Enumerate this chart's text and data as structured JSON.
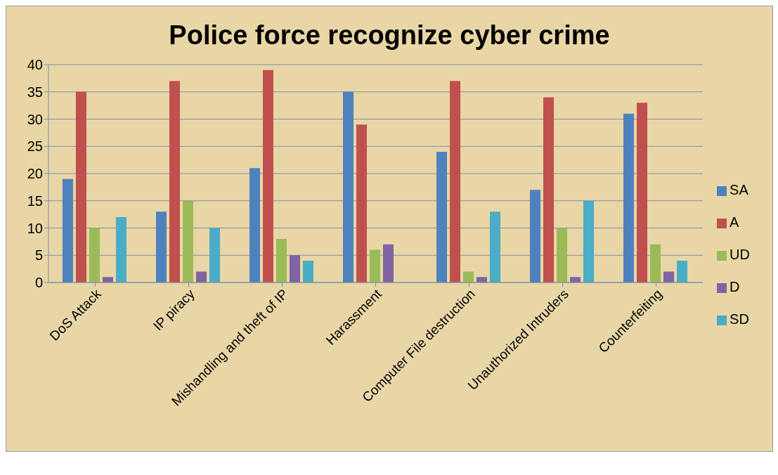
{
  "chart_data": {
    "type": "bar",
    "title": "Police force recognize cyber crime",
    "categories": [
      "DoS Attack",
      "IP  piracy",
      "Mishandling and theft of IP",
      "Harassment",
      "Computer File destruction",
      "Unauthorized Intruders",
      "Counterfeiting"
    ],
    "series": [
      {
        "name": "SA",
        "color": "#4f81bd",
        "values": [
          19,
          13,
          21,
          35,
          24,
          17,
          31
        ]
      },
      {
        "name": "A",
        "color": "#c0504d",
        "values": [
          35,
          37,
          39,
          29,
          37,
          34,
          33
        ]
      },
      {
        "name": "UD",
        "color": "#9bbb59",
        "values": [
          10,
          15,
          8,
          6,
          2,
          10,
          7
        ]
      },
      {
        "name": "D",
        "color": "#8064a2",
        "values": [
          1,
          2,
          5,
          7,
          1,
          1,
          2
        ]
      },
      {
        "name": "SD",
        "color": "#4bacc6",
        "values": [
          12,
          10,
          4,
          0,
          13,
          15,
          4
        ]
      }
    ],
    "ylim": [
      0,
      40
    ],
    "yticks": [
      0,
      5,
      10,
      15,
      20,
      25,
      30,
      35,
      40
    ],
    "grid": "y",
    "legend": "right"
  }
}
